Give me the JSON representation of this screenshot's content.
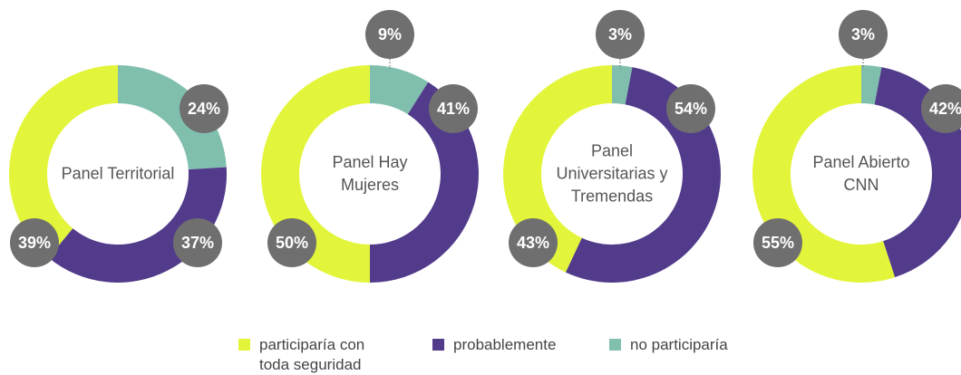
{
  "chart_data": [
    {
      "type": "pie",
      "title": "Panel Territorial",
      "categories": [
        "no participaría",
        "probablemente",
        "participaría con toda seguridad"
      ],
      "values": [
        24,
        37,
        39
      ],
      "value_labels": [
        "24%",
        "37%",
        "39%"
      ],
      "colors": [
        "#80bfae",
        "#523b8b",
        "#e3f53b"
      ]
    },
    {
      "type": "pie",
      "title": "Panel Hay Mujeres",
      "categories": [
        "no participaría",
        "probablemente",
        "participaría con toda seguridad"
      ],
      "values": [
        9,
        41,
        50
      ],
      "value_labels": [
        "9%",
        "41%",
        "50%"
      ],
      "colors": [
        "#80bfae",
        "#523b8b",
        "#e3f53b"
      ]
    },
    {
      "type": "pie",
      "title": "Panel Universitarias y Tremendas",
      "categories": [
        "no participaría",
        "probablemente",
        "participaría con toda seguridad"
      ],
      "values": [
        3,
        54,
        43
      ],
      "value_labels": [
        "3%",
        "54%",
        "43%"
      ],
      "colors": [
        "#80bfae",
        "#523b8b",
        "#e3f53b"
      ]
    },
    {
      "type": "pie",
      "title": "Panel Abierto CNN",
      "categories": [
        "no participaría",
        "probablemente",
        "participaría con toda seguridad"
      ],
      "values": [
        3,
        42,
        55
      ],
      "value_labels": [
        "3%",
        "42%",
        "55%"
      ],
      "colors": [
        "#80bfae",
        "#523b8b",
        "#e3f53b"
      ]
    }
  ],
  "legend": [
    {
      "name": "participaría con toda seguridad",
      "color": "#e3f53b"
    },
    {
      "name": "probablemente",
      "color": "#523b8b"
    },
    {
      "name": "no participaría",
      "color": "#80bfae"
    }
  ]
}
